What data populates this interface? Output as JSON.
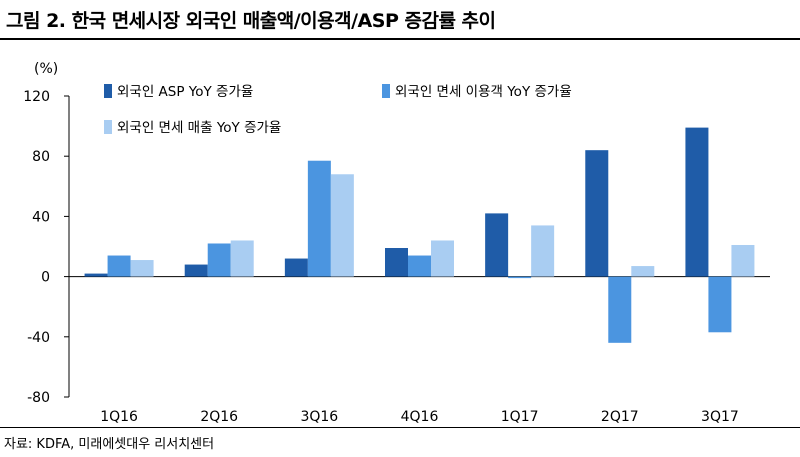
{
  "title": "그림 2. 한국 면세시장 외국인 매출액/이용객/ASP 증감률 추이",
  "source": "자료: KDFA, 미래에셋대우 리서치센터",
  "chart_data": {
    "type": "bar",
    "unit_label": "(%)",
    "categories": [
      "1Q16",
      "2Q16",
      "3Q16",
      "4Q16",
      "1Q17",
      "2Q17",
      "3Q17"
    ],
    "ylim": [
      -80,
      120
    ],
    "yticks": [
      120,
      80,
      40,
      0,
      -40,
      -80
    ],
    "ytick_labels": [
      "120",
      "80",
      "40",
      "0",
      "-40",
      "-80"
    ],
    "legend_position": "top-left",
    "grid": false,
    "series": [
      {
        "name": "외국인 ASP  YoY 증가율",
        "color": "#1f5ca8",
        "values": [
          2,
          8,
          12,
          19,
          42,
          84,
          99
        ]
      },
      {
        "name": "외국인 면세 이용객 YoY 증가율",
        "color": "#4b95e0",
        "values": [
          14,
          22,
          77,
          14,
          -1,
          -44,
          -37
        ]
      },
      {
        "name": "외국인 면세 매출  YoY 증가율",
        "color": "#a9cdf2",
        "values": [
          11,
          24,
          68,
          24,
          34,
          7,
          21
        ]
      }
    ]
  }
}
